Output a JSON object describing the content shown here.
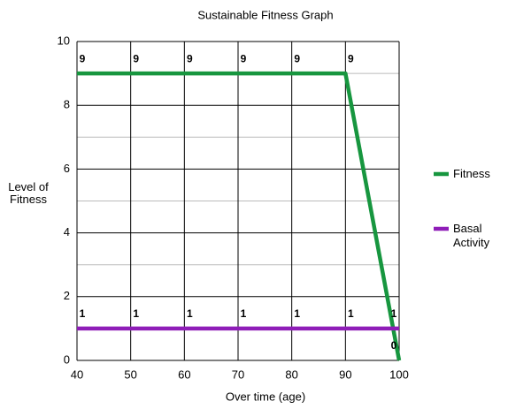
{
  "chart_data": {
    "type": "line",
    "title": "Sustainable Fitness Graph",
    "x_label": "Over time (age)",
    "y_label": "Level of Fitness",
    "x": [
      40,
      50,
      60,
      70,
      80,
      90,
      100
    ],
    "series": [
      {
        "name": "Fitness",
        "color": "#17963f",
        "values": [
          9,
          9,
          9,
          9,
          9,
          9,
          0
        ]
      },
      {
        "name": "Basal Activity",
        "color": "#8f1db8",
        "values": [
          1,
          1,
          1,
          1,
          1,
          1,
          1
        ]
      }
    ],
    "xlim": [
      40,
      100
    ],
    "xticks": [
      40,
      50,
      60,
      70,
      80,
      90,
      100
    ],
    "ylim": [
      0,
      10
    ],
    "yticks": [
      0,
      2,
      4,
      6,
      8,
      10
    ],
    "minor_yticks": [
      1,
      3,
      5,
      7,
      9
    ],
    "grid": true,
    "legend": "right"
  }
}
